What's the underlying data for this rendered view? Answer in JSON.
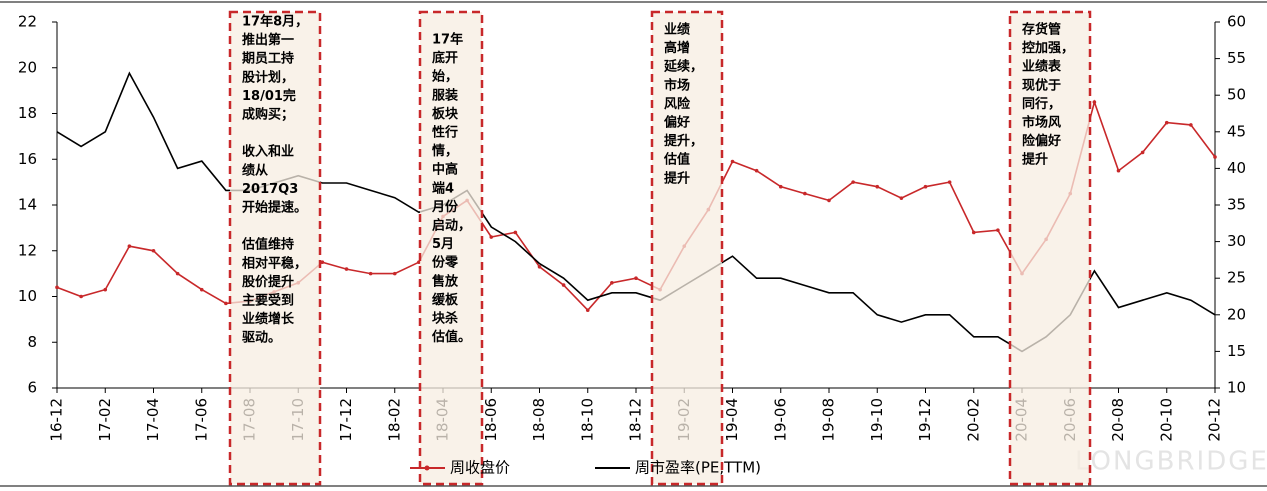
{
  "chart_data": {
    "type": "line",
    "categories": [
      "16-12",
      null,
      "17-02",
      null,
      "17-04",
      null,
      "17-06",
      null,
      "17-08",
      null,
      "17-10",
      null,
      "17-12",
      null,
      "18-02",
      null,
      "18-04",
      null,
      "18-06",
      null,
      "18-08",
      null,
      "18-10",
      null,
      "18-12",
      null,
      "19-02",
      null,
      "19-04",
      null,
      "19-06",
      null,
      "19-08",
      null,
      "19-10",
      null,
      "19-12",
      null,
      "20-02",
      null,
      "20-04",
      null,
      "20-06",
      null,
      "20-08",
      null,
      "20-10",
      null,
      "20-12"
    ],
    "series": [
      {
        "name": "周收盘价",
        "color": "#c8282a",
        "axis": "y",
        "values": [
          10.4,
          10.0,
          10.3,
          12.2,
          12.0,
          11.0,
          10.3,
          9.7,
          9.8,
          10.2,
          10.6,
          11.5,
          11.2,
          11.0,
          11.0,
          11.5,
          13.5,
          14.2,
          12.6,
          12.8,
          11.3,
          10.5,
          9.4,
          10.6,
          10.8,
          10.3,
          12.2,
          13.8,
          15.9,
          15.5,
          14.8,
          14.5,
          14.2,
          15.0,
          14.8,
          14.3,
          14.8,
          15.0,
          12.8,
          12.9,
          11.0,
          12.5,
          14.5,
          18.5,
          15.5,
          16.3,
          17.6,
          17.5,
          16.1
        ]
      },
      {
        "name": "周市盈率(PE,TTM)",
        "color": "#000000",
        "axis": "y2",
        "values": [
          45,
          43,
          45,
          53,
          47,
          40,
          41,
          37,
          37,
          38,
          39,
          38,
          38,
          37,
          36,
          34,
          35,
          37,
          32,
          30,
          27,
          25,
          22,
          23,
          23,
          22,
          24,
          26,
          28,
          25,
          25,
          24,
          23,
          23,
          20,
          19,
          20,
          20,
          17,
          17,
          15,
          17,
          20,
          26,
          21,
          22,
          23,
          22,
          20
        ]
      }
    ],
    "ylim": [
      6,
      22
    ],
    "yticks": [
      6,
      8,
      10,
      12,
      14,
      16,
      18,
      20,
      22
    ],
    "y2lim": [
      10,
      60
    ],
    "y2ticks": [
      10,
      15,
      20,
      25,
      30,
      35,
      40,
      45,
      50,
      55,
      60
    ],
    "annotations": [
      [
        [
          "17年8月，",
          "推出第一",
          "期员工持",
          "股计划，",
          "18/01完",
          "成购买；"
        ],
        [
          "收入和业",
          "绩从",
          "2017Q3",
          "开始提速。"
        ],
        [
          "估值维持",
          "相对平稳，",
          "股价提升",
          "主要受到",
          "业绩增长",
          "驱动。"
        ]
      ],
      [
        [
          "17年",
          "底开",
          "始，",
          "服装",
          "板块",
          "性行",
          "情，",
          "中高",
          "端4",
          "月份",
          "启动，",
          "5月",
          "份零",
          "售放",
          "缓板",
          "块杀",
          "估值。"
        ]
      ],
      [
        [
          "业绩",
          "高增",
          "延续，",
          "市场",
          "风险",
          "偏好",
          "提升，",
          "估值",
          "提升"
        ]
      ],
      [
        [
          "存货管",
          "控加强，",
          "业绩表",
          "现优于",
          "同行，",
          "市场风",
          "险偏好",
          "提升"
        ]
      ]
    ],
    "watermark": "LONGBRIDGE"
  }
}
